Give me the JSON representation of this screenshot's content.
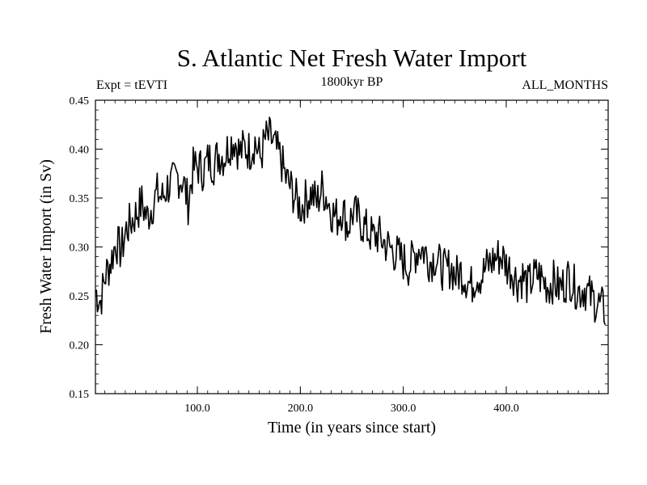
{
  "chart_data": {
    "type": "line",
    "title": "S. Atlantic Net Fresh Water Import",
    "subtitle_left": "Expt = tEVTI",
    "subtitle_center": "1800kyr BP",
    "subtitle_right": "ALL_MONTHS",
    "xlabel": "Time (in years since start)",
    "ylabel": "Fresh Water Import (in Sv)",
    "xlim": [
      1,
      499
    ],
    "ylim": [
      0.15,
      0.45
    ],
    "x_ticks": [
      100,
      200,
      300,
      400
    ],
    "x_tick_labels": [
      "100.0",
      "200.0",
      "300.0",
      "400.0"
    ],
    "y_ticks": [
      0.15,
      0.2,
      0.25,
      0.3,
      0.35,
      0.4,
      0.45
    ],
    "y_tick_labels": [
      "0.15",
      "0.20",
      "0.25",
      "0.30",
      "0.35",
      "0.40",
      "0.45"
    ],
    "grid": false,
    "series": [
      {
        "name": "Fresh Water Import",
        "x_start": 1,
        "x_step": 5,
        "note": "5-year sampled trace of the annual series",
        "values": [
          0.255,
          0.245,
          0.272,
          0.285,
          0.305,
          0.295,
          0.318,
          0.326,
          0.335,
          0.345,
          0.33,
          0.342,
          0.355,
          0.35,
          0.362,
          0.365,
          0.372,
          0.368,
          0.345,
          0.38,
          0.382,
          0.378,
          0.39,
          0.385,
          0.395,
          0.392,
          0.405,
          0.41,
          0.396,
          0.402,
          0.398,
          0.408,
          0.39,
          0.41,
          0.412,
          0.4,
          0.39,
          0.37,
          0.36,
          0.348,
          0.34,
          0.35,
          0.355,
          0.345,
          0.36,
          0.35,
          0.335,
          0.33,
          0.34,
          0.32,
          0.335,
          0.33,
          0.322,
          0.315,
          0.31,
          0.312,
          0.305,
          0.3,
          0.295,
          0.29,
          0.285,
          0.28,
          0.292,
          0.3,
          0.295,
          0.285,
          0.29,
          0.28,
          0.275,
          0.28,
          0.27,
          0.275,
          0.268,
          0.26,
          0.272,
          0.27,
          0.28,
          0.285,
          0.29,
          0.29,
          0.28,
          0.275,
          0.265,
          0.27,
          0.26,
          0.268,
          0.272,
          0.265,
          0.26,
          0.265,
          0.258,
          0.262,
          0.27,
          0.26,
          0.255,
          0.258,
          0.25,
          0.245,
          0.24,
          0.235
        ]
      }
    ]
  }
}
